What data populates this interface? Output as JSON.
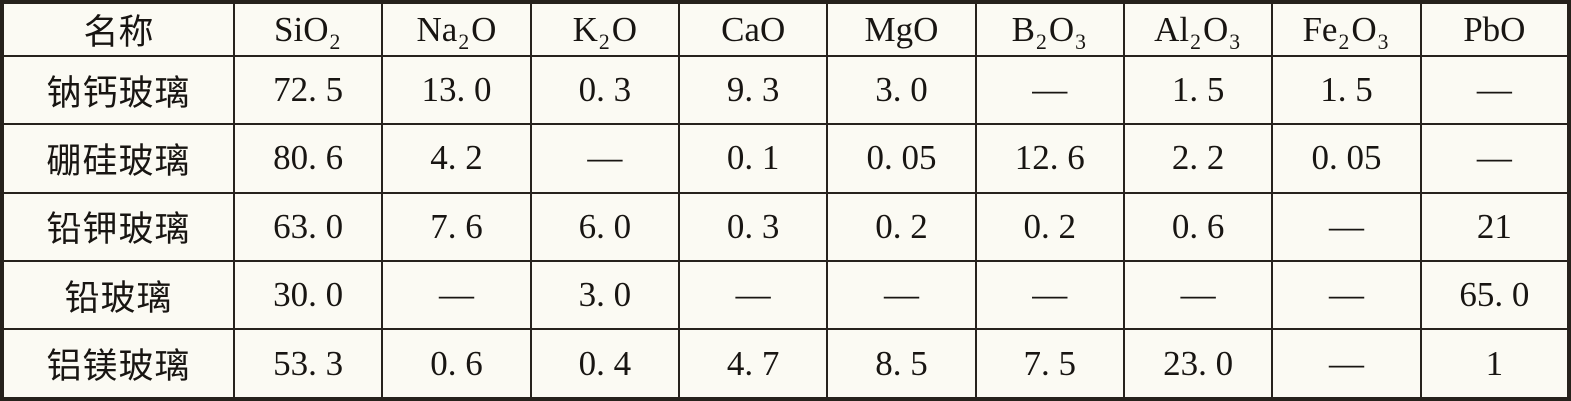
{
  "colors": {
    "background": "#fbfaf3",
    "border": "#26221c",
    "text": "#181512"
  },
  "table": {
    "title": "glass-composition-table",
    "columns": [
      {
        "label": "名称",
        "segments": [
          {
            "t": "名称"
          }
        ]
      },
      {
        "label": "SiO2",
        "segments": [
          {
            "t": "SiO"
          },
          {
            "t": "2",
            "sub": true
          }
        ]
      },
      {
        "label": "Na2O",
        "segments": [
          {
            "t": "Na"
          },
          {
            "t": "2",
            "sub": true
          },
          {
            "t": "O"
          }
        ]
      },
      {
        "label": "K2O",
        "segments": [
          {
            "t": "K"
          },
          {
            "t": "2",
            "sub": true
          },
          {
            "t": "O"
          }
        ]
      },
      {
        "label": "CaO",
        "segments": [
          {
            "t": "CaO"
          }
        ]
      },
      {
        "label": "MgO",
        "segments": [
          {
            "t": "MgO"
          }
        ]
      },
      {
        "label": "B2O3",
        "segments": [
          {
            "t": "B"
          },
          {
            "t": "2",
            "sub": true
          },
          {
            "t": "O"
          },
          {
            "t": "3",
            "sub": true
          }
        ]
      },
      {
        "label": "Al2O3",
        "segments": [
          {
            "t": "Al"
          },
          {
            "t": "2",
            "sub": true
          },
          {
            "t": "O"
          },
          {
            "t": "3",
            "sub": true
          }
        ]
      },
      {
        "label": "Fe2O3",
        "segments": [
          {
            "t": "Fe"
          },
          {
            "t": "2",
            "sub": true
          },
          {
            "t": "O"
          },
          {
            "t": "3",
            "sub": true
          }
        ]
      },
      {
        "label": "PbO",
        "segments": [
          {
            "t": "PbO"
          }
        ]
      }
    ],
    "rows": [
      {
        "name": "钠钙玻璃",
        "values": [
          "72. 5",
          "13. 0",
          "0. 3",
          "9. 3",
          "3. 0",
          "—",
          "1. 5",
          "1. 5",
          "—"
        ]
      },
      {
        "name": "硼硅玻璃",
        "values": [
          "80. 6",
          "4. 2",
          "—",
          "0. 1",
          "0. 05",
          "12. 6",
          "2. 2",
          "0. 05",
          "—"
        ]
      },
      {
        "name": "铅钾玻璃",
        "values": [
          "63. 0",
          "7. 6",
          "6. 0",
          "0. 3",
          "0. 2",
          "0. 2",
          "0. 6",
          "—",
          "21"
        ]
      },
      {
        "name": "铅玻璃",
        "values": [
          "30. 0",
          "—",
          "3. 0",
          "—",
          "—",
          "—",
          "—",
          "—",
          "65. 0"
        ]
      },
      {
        "name": "铝镁玻璃",
        "values": [
          "53. 3",
          "0. 6",
          "0. 4",
          "4. 7",
          "8. 5",
          "7. 5",
          "23. 0",
          "—",
          "1"
        ]
      }
    ]
  }
}
